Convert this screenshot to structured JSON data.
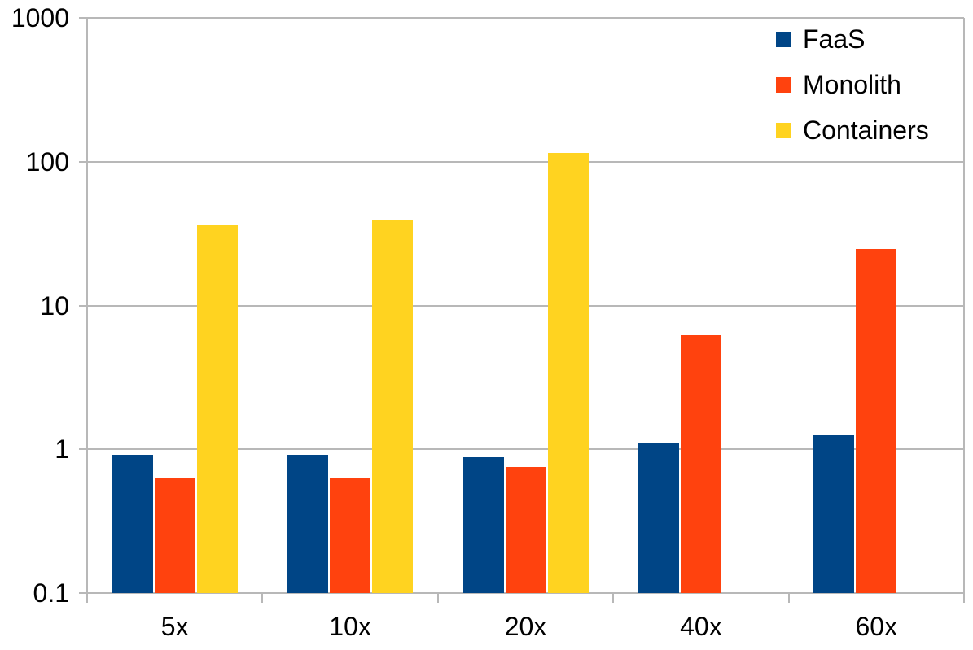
{
  "chart_data": {
    "type": "bar",
    "y_scale": "log",
    "title": "",
    "xlabel": "",
    "ylabel": "",
    "categories": [
      "5x",
      "10x",
      "20x",
      "40x",
      "60x"
    ],
    "series": [
      {
        "name": "FaaS",
        "color": "#004586",
        "values": [
          0.92,
          0.92,
          0.88,
          1.11,
          1.25
        ]
      },
      {
        "name": "Monolith",
        "color": "#ff420e",
        "values": [
          0.64,
          0.63,
          0.75,
          6.2,
          24.8
        ]
      },
      {
        "name": "Containers",
        "color": "#ffd320",
        "values": [
          36,
          39,
          115,
          null,
          null
        ]
      }
    ],
    "ylim": [
      0.1,
      1000
    ],
    "y_ticks": [
      0.1,
      1,
      10,
      100,
      1000
    ],
    "y_tick_labels": [
      "0.1",
      "1",
      "10",
      "100",
      "1000"
    ],
    "grid": true,
    "legend_position": "top-right"
  },
  "colors": {
    "grid": "#b8b8b8",
    "text": "#000000",
    "background": "#ffffff"
  }
}
